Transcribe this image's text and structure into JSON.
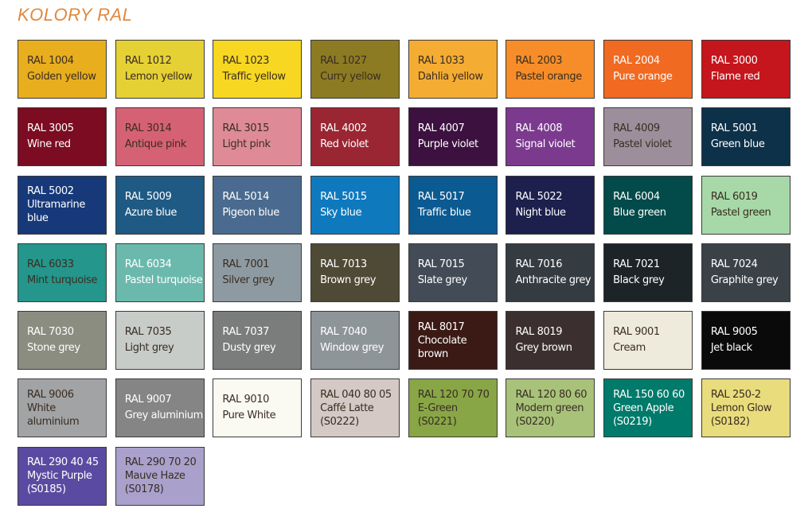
{
  "title": "KOLORY RAL",
  "swatches": [
    {
      "lines": [
        "RAL 1004",
        "Golden yellow"
      ],
      "color": "#e9ae1e",
      "text": "dark"
    },
    {
      "lines": [
        "RAL 1012",
        "Lemon yellow"
      ],
      "color": "#e6d135",
      "text": "dark"
    },
    {
      "lines": [
        "RAL 1023",
        "Traffic yellow"
      ],
      "color": "#f7d721",
      "text": "dark"
    },
    {
      "lines": [
        "RAL 1027",
        "Curry yellow"
      ],
      "color": "#8c7b22",
      "text": "dark"
    },
    {
      "lines": [
        "RAL 1033",
        "Dahlia yellow"
      ],
      "color": "#f5ac32",
      "text": "dark"
    },
    {
      "lines": [
        "RAL 2003",
        "Pastel orange"
      ],
      "color": "#f68d28",
      "text": "dark"
    },
    {
      "lines": [
        "RAL 2004",
        "Pure orange"
      ],
      "color": "#f06a21",
      "text": "light"
    },
    {
      "lines": [
        "RAL 3000",
        "Flame red"
      ],
      "color": "#c4161c",
      "text": "light"
    },
    {
      "lines": [
        "RAL 3005",
        "Wine red"
      ],
      "color": "#7b0c21",
      "text": "light"
    },
    {
      "lines": [
        "RAL 3014",
        "Antique pink"
      ],
      "color": "#d56175",
      "text": "dark"
    },
    {
      "lines": [
        "RAL 3015",
        "Light pink"
      ],
      "color": "#df8b97",
      "text": "dark"
    },
    {
      "lines": [
        "RAL 4002",
        "Red violet"
      ],
      "color": "#9a2633",
      "text": "light"
    },
    {
      "lines": [
        "RAL 4007",
        "Purple violet"
      ],
      "color": "#3c1140",
      "text": "light"
    },
    {
      "lines": [
        "RAL 4008",
        "Signal violet"
      ],
      "color": "#7c3a8f",
      "text": "light"
    },
    {
      "lines": [
        "RAL 4009",
        "Pastel violet"
      ],
      "color": "#9c8f9b",
      "text": "dark"
    },
    {
      "lines": [
        "RAL 5001",
        "Green blue"
      ],
      "color": "#0d3149",
      "text": "light"
    },
    {
      "lines": [
        "RAL 5002",
        "Ultramarine",
        "blue"
      ],
      "color": "#17397a",
      "text": "light"
    },
    {
      "lines": [
        "RAL 5009",
        "Azure blue"
      ],
      "color": "#1e5a84",
      "text": "light"
    },
    {
      "lines": [
        "RAL 5014",
        "Pigeon blue"
      ],
      "color": "#4a6b8f",
      "text": "light"
    },
    {
      "lines": [
        "RAL 5015",
        "Sky blue"
      ],
      "color": "#0f79be",
      "text": "light"
    },
    {
      "lines": [
        "RAL 5017",
        "Traffic blue"
      ],
      "color": "#0b5a92",
      "text": "light"
    },
    {
      "lines": [
        "RAL 5022",
        "Night blue"
      ],
      "color": "#1d1f4d",
      "text": "light"
    },
    {
      "lines": [
        "RAL 6004",
        "Blue green"
      ],
      "color": "#024b4a",
      "text": "light"
    },
    {
      "lines": [
        "RAL 6019",
        "Pastel green"
      ],
      "color": "#a7d9a8",
      "text": "dark"
    },
    {
      "lines": [
        "RAL 6033",
        "Mint turquoise"
      ],
      "color": "#24968b",
      "text": "dark"
    },
    {
      "lines": [
        "RAL 6034",
        "Pastel turquoise"
      ],
      "color": "#6bb9ad",
      "text": "light"
    },
    {
      "lines": [
        "RAL 7001",
        "Silver grey"
      ],
      "color": "#8e9aa1",
      "text": "dark"
    },
    {
      "lines": [
        "RAL 7013",
        "Brown grey"
      ],
      "color": "#4f4a35",
      "text": "light"
    },
    {
      "lines": [
        "RAL 7015",
        "Slate grey"
      ],
      "color": "#434c56",
      "text": "light"
    },
    {
      "lines": [
        "RAL 7016",
        "Anthracite grey"
      ],
      "color": "#353c41",
      "text": "light"
    },
    {
      "lines": [
        "RAL 7021",
        "Black grey"
      ],
      "color": "#1d2428",
      "text": "light"
    },
    {
      "lines": [
        "RAL 7024",
        "Graphite grey"
      ],
      "color": "#3b4247",
      "text": "light"
    },
    {
      "lines": [
        "RAL 7030",
        "Stone grey"
      ],
      "color": "#8b8d81",
      "text": "light"
    },
    {
      "lines": [
        "RAL 7035",
        "Light grey"
      ],
      "color": "#c7ccc9",
      "text": "dark"
    },
    {
      "lines": [
        "RAL 7037",
        "Dusty grey"
      ],
      "color": "#7b7d7d",
      "text": "light"
    },
    {
      "lines": [
        "RAL 7040",
        "Window grey"
      ],
      "color": "#8e9599",
      "text": "light"
    },
    {
      "lines": [
        "RAL 8017",
        "Chocolate",
        "brown"
      ],
      "color": "#3b1a15",
      "text": "light"
    },
    {
      "lines": [
        "RAL 8019",
        "Grey brown"
      ],
      "color": "#3b2f2f",
      "text": "light"
    },
    {
      "lines": [
        "RAL 9001",
        "Cream"
      ],
      "color": "#efebdc",
      "text": "dark"
    },
    {
      "lines": [
        "RAL 9005",
        "Jet black"
      ],
      "color": "#0a0a0a",
      "text": "light"
    },
    {
      "lines": [
        "RAL 9006",
        "White",
        "aluminium"
      ],
      "color": "#a1a3a5",
      "text": "dark"
    },
    {
      "lines": [
        "RAL 9007",
        "Grey aluminium"
      ],
      "color": "#858585",
      "text": "light"
    },
    {
      "lines": [
        "RAL 9010",
        "Pure White"
      ],
      "color": "#fbfaf2",
      "text": "dark"
    },
    {
      "lines": [
        "RAL 040 80 05",
        "Caffé Latte",
        "(S0222)"
      ],
      "color": "#d4c9c4",
      "text": "dark"
    },
    {
      "lines": [
        "RAL 120 70 70",
        "E-Green",
        "(S0221)"
      ],
      "color": "#88a646",
      "text": "dark"
    },
    {
      "lines": [
        "RAL 120 80 60",
        "Modern green",
        "(S0220)"
      ],
      "color": "#a8c27a",
      "text": "dark"
    },
    {
      "lines": [
        "RAL 150 60 60",
        "Green Apple",
        "(S0219)"
      ],
      "color": "#007a6b",
      "text": "light"
    },
    {
      "lines": [
        "RAL 250-2",
        "Lemon Glow",
        "(S0182)"
      ],
      "color": "#e8dc7d",
      "text": "dark"
    },
    {
      "lines": [
        "RAL 290 40 45",
        "Mystic Purple",
        "(S0185)"
      ],
      "color": "#5b4aa1",
      "text": "light"
    },
    {
      "lines": [
        "RAL 290 70 20",
        "Mauve Haze",
        "(S0178)"
      ],
      "color": "#a9a1cc",
      "text": "dark"
    }
  ],
  "text_colors": {
    "dark": "#3a2d22",
    "light": "#ffffff"
  }
}
